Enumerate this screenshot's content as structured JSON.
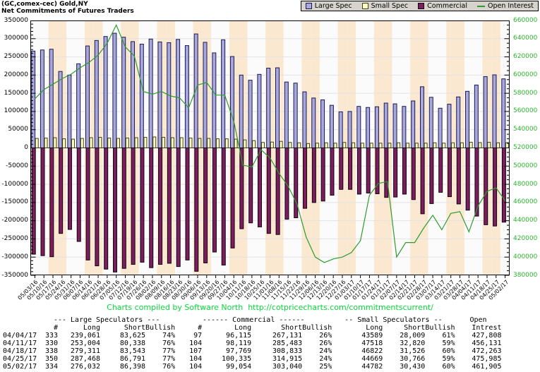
{
  "title": {
    "line1": "(GC,comex-cec) Gold,NY",
    "line2": "Net Commitments of Futures Traders"
  },
  "legend": [
    {
      "label": "Large Spec",
      "swatch": "square",
      "color": "#A8A8DC",
      "border": "#1A1A50"
    },
    {
      "label": "Small Spec",
      "swatch": "square",
      "color": "#FFFFC8",
      "border": "#404010"
    },
    {
      "label": "Commercial",
      "swatch": "square",
      "color": "#7B1E5E",
      "border": "#14000E"
    },
    {
      "label": "Open Interest",
      "swatch": "line",
      "color": "#2E9B2E",
      "border": "#2E9B2E"
    }
  ],
  "colors": {
    "stripe_cream": "#FBE8D0",
    "stripe_white": "#FBFBFB",
    "grid": "#E3E3E3",
    "zero_line": "#333333",
    "frame": "#000000",
    "right_axis_green": "#2DB52D",
    "footer_green": "#00DC37",
    "legend_bg": "#D6D3CC"
  },
  "chart_data": {
    "type": "bar",
    "title": "(GC,comex-cec) Gold,NY — Net Commitments of Futures Traders",
    "grid": true,
    "legend_position": "top-right",
    "left_axis": {
      "min": -350000,
      "max": 350000,
      "step": 50000,
      "tick_labels": [
        "350000",
        "300000",
        "250000",
        "200000",
        "150000",
        "100000",
        "50000",
        "0",
        "-50000",
        "-100000",
        "-150000",
        "-200000",
        "-250000",
        "-300000",
        "-350000"
      ]
    },
    "right_axis": {
      "min": 380000,
      "max": 660000,
      "step": 20000,
      "tick_labels": [
        "660000",
        "640000",
        "620000",
        "600000",
        "580000",
        "560000",
        "540000",
        "520000",
        "500000",
        "480000",
        "460000",
        "440000",
        "420000",
        "400000",
        "380000"
      ]
    },
    "categories": [
      "05/03/16",
      "05/10/16",
      "05/17/16",
      "05/24/16",
      "05/31/16",
      "06/07/16",
      "06/14/16",
      "06/21/16",
      "06/28/16",
      "07/05/16",
      "07/12/16",
      "07/19/16",
      "07/26/16",
      "08/02/16",
      "08/09/16",
      "08/16/16",
      "08/23/16",
      "08/30/16",
      "09/06/16",
      "09/13/16",
      "09/20/16",
      "09/27/16",
      "10/04/16",
      "10/11/16",
      "10/18/16",
      "10/25/16",
      "11/01/16",
      "11/08/16",
      "11/15/16",
      "11/22/16",
      "11/29/16",
      "12/06/16",
      "12/13/16",
      "12/20/16",
      "12/27/16",
      "01/03/17",
      "01/10/17",
      "01/17/17",
      "01/24/17",
      "01/31/17",
      "02/07/17",
      "02/14/17",
      "02/21/17",
      "02/28/17",
      "03/07/17",
      "03/14/17",
      "03/21/17",
      "03/28/17",
      "04/04/17",
      "04/11/17",
      "04/18/17",
      "04/25/17",
      "05/02/17"
    ],
    "series": [
      {
        "name": "Large Spec",
        "type": "bar",
        "axis": "left",
        "color": "#A8A8DC",
        "border": "#1A1A50",
        "values": [
          266000,
          269000,
          271000,
          210000,
          200000,
          231000,
          280000,
          295000,
          306000,
          315000,
          304000,
          292000,
          285000,
          299000,
          291000,
          289000,
          298000,
          281000,
          313000,
          290000,
          261000,
          297000,
          251000,
          200000,
          186000,
          202000,
          219000,
          220000,
          181000,
          178000,
          154000,
          137000,
          132000,
          117000,
          99000,
          100000,
          114000,
          111000,
          113000,
          123000,
          121000,
          114000,
          129000,
          168000,
          139000,
          109000,
          120000,
          140000,
          155436,
          172666,
          195768,
          200677,
          189634
        ]
      },
      {
        "name": "Small Spec",
        "type": "bar",
        "axis": "left",
        "color": "#FFFFC8",
        "border": "#404010",
        "values": [
          26000,
          27000,
          28000,
          25000,
          24000,
          26000,
          28000,
          29000,
          27000,
          26000,
          27000,
          28000,
          29000,
          30000,
          29000,
          28000,
          28000,
          27000,
          26000,
          26000,
          25000,
          25000,
          24000,
          22000,
          20000,
          15000,
          16000,
          18000,
          15000,
          14000,
          12000,
          13000,
          14000,
          13000,
          15000,
          14000,
          13000,
          13000,
          13000,
          13000,
          14000,
          13000,
          13000,
          13000,
          14000,
          13000,
          14000,
          14000,
          15580,
          14698,
          15296,
          13903,
          14352
        ]
      },
      {
        "name": "Commercial",
        "type": "bar",
        "axis": "left",
        "color": "#7B1E5E",
        "border": "#14000E",
        "values": [
          -292000,
          -296000,
          -299000,
          -235000,
          -224000,
          -257000,
          -308000,
          -324000,
          -333000,
          -341000,
          -331000,
          -320000,
          -314000,
          -329000,
          -320000,
          -317000,
          -326000,
          -308000,
          -339000,
          -316000,
          -286000,
          -322000,
          -275000,
          -222000,
          -206000,
          -217000,
          -235000,
          -238000,
          -196000,
          -192000,
          -166000,
          -150000,
          -146000,
          -130000,
          -114000,
          -114000,
          -127000,
          -124000,
          -126000,
          -136000,
          -135000,
          -127000,
          -142000,
          -181000,
          -153000,
          -122000,
          -134000,
          -154000,
          -171016,
          -187364,
          -211064,
          -214580,
          -203986
        ]
      },
      {
        "name": "Open Interest",
        "type": "line",
        "axis": "right",
        "color": "#2E9B2E",
        "values": [
          574000,
          584000,
          590000,
          596000,
          601000,
          608000,
          614000,
          622000,
          635000,
          655000,
          631000,
          621000,
          582000,
          579000,
          582000,
          577000,
          575000,
          564000,
          589000,
          592000,
          578000,
          578000,
          549000,
          501000,
          499000,
          518000,
          509000,
          492000,
          478000,
          458000,
          422000,
          400000,
          394000,
          398000,
          400000,
          405000,
          418000,
          468000,
          481000,
          483000,
          400000,
          416000,
          416000,
          432000,
          446000,
          430000,
          448000,
          450000,
          427808,
          456131,
          472263,
          475985,
          461905
        ]
      }
    ]
  },
  "footer": {
    "text": "Charts compiled by Software North",
    "url": "http://cotpricecharts.com/commitmentscurrent/"
  },
  "table": {
    "group_headers": [
      "--- Large Speculators ---",
      "------ Commercial ------",
      "-- Small Speculators --",
      "Open"
    ],
    "col_headers": [
      "",
      "#",
      "Long",
      "Short",
      "Bullish",
      "#",
      "Long",
      "Short",
      "Bullish",
      "Long",
      "Short",
      "Bullish",
      "Intrest"
    ],
    "rows": [
      [
        "04/04/17",
        "333",
        "239,061",
        "83,625",
        "74%",
        "97",
        "96,115",
        "267,131",
        "26%",
        "43589",
        "28,009",
        "61%",
        "427,808"
      ],
      [
        "04/11/17",
        "330",
        "253,004",
        "80,338",
        "76%",
        "104",
        "98,119",
        "285,483",
        "26%",
        "47518",
        "32,820",
        "59%",
        "456,131"
      ],
      [
        "04/18/17",
        "338",
        "279,311",
        "83,543",
        "77%",
        "107",
        "97,769",
        "308,833",
        "24%",
        "46822",
        "31,526",
        "60%",
        "472,263"
      ],
      [
        "04/25/17",
        "350",
        "287,468",
        "86,791",
        "77%",
        "104",
        "100,335",
        "314,915",
        "24%",
        "44669",
        "30,766",
        "59%",
        "475,985"
      ],
      [
        "05/02/17",
        "334",
        "276,032",
        "86,398",
        "76%",
        "104",
        "99,054",
        "303,040",
        "25%",
        "44782",
        "30,430",
        "60%",
        "461,905"
      ]
    ]
  }
}
